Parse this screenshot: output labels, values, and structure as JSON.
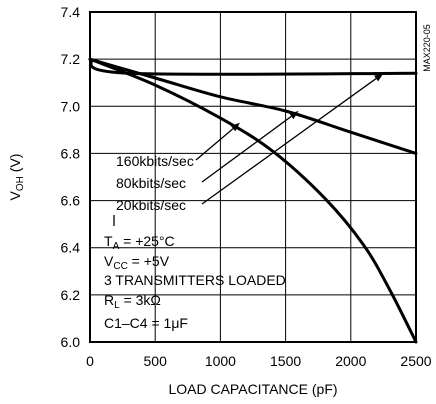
{
  "chart_data": {
    "type": "line",
    "title": "",
    "xlabel": "LOAD CAPACITANCE (pF)",
    "ylabel_main": "V",
    "ylabel_sub": "OH",
    "ylabel_unit": " (V)",
    "xlim": [
      0,
      2500
    ],
    "ylim": [
      6.0,
      7.4
    ],
    "xticks": [
      0,
      500,
      1000,
      1500,
      2000,
      2500
    ],
    "yticks": [
      6.0,
      6.2,
      6.4,
      6.6,
      6.8,
      7.0,
      7.2,
      7.4
    ],
    "xtick_labels": [
      "0",
      "500",
      "1000",
      "1500",
      "2000",
      "2500"
    ],
    "ytick_labels": [
      "6.0",
      "6.2",
      "6.4",
      "6.6",
      "6.8",
      "7.0",
      "7.2",
      "7.4"
    ],
    "grid": true,
    "figure_code": "MAX220-05",
    "series": [
      {
        "name": "20kbits/sec",
        "x": [
          0,
          300,
          2500
        ],
        "y": [
          7.2,
          7.14,
          7.14
        ]
      },
      {
        "name": "80kbits/sec",
        "x": [
          0,
          500,
          1000,
          1500,
          2000,
          2500
        ],
        "y": [
          7.2,
          7.12,
          7.04,
          6.98,
          6.89,
          6.8
        ]
      },
      {
        "name": "160kbits/sec",
        "x": [
          0,
          500,
          1000,
          1400,
          1800,
          2100,
          2300,
          2500
        ],
        "y": [
          7.2,
          7.09,
          6.95,
          6.81,
          6.61,
          6.41,
          6.22,
          6.0
        ]
      }
    ],
    "label_arrows": [
      {
        "series": 2,
        "text": "160kbits/sec",
        "tip": [
          1150,
          6.93
        ]
      },
      {
        "series": 1,
        "text": "80kbits/sec",
        "tip": [
          1600,
          6.98
        ]
      },
      {
        "series": 0,
        "text": "20kbits/sec",
        "tip": [
          2250,
          7.14
        ]
      }
    ],
    "conditions": [
      {
        "main": "T",
        "sub": "A",
        "rest": " = +25°C"
      },
      {
        "main": "V",
        "sub": "CC",
        "rest": " = +5V"
      },
      {
        "main": "3 TRANSMITTERS LOADED",
        "sub": "",
        "rest": ""
      },
      {
        "main": "R",
        "sub": "L",
        "rest": " = 3kΩ"
      },
      {
        "main": "C1–C4 = 1μF",
        "sub": "",
        "rest": ""
      }
    ]
  }
}
